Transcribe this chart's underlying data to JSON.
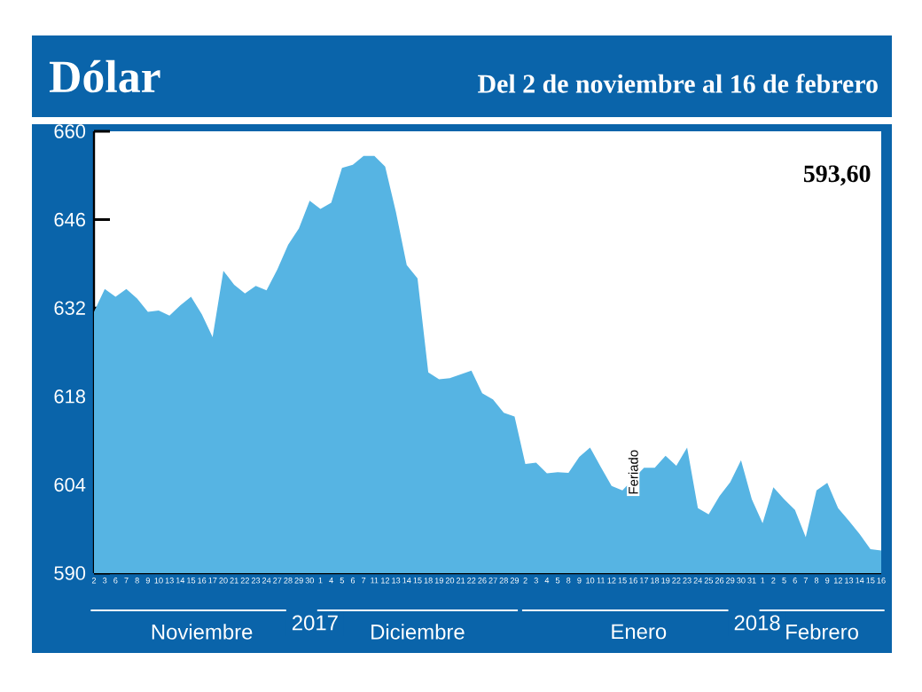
{
  "chart_data": {
    "type": "area",
    "title": "Dólar",
    "subtitle": "Del 2 de noviembre al 16 de febrero",
    "color": "#56b4e3",
    "categories": [
      "2",
      "3",
      "6",
      "7",
      "8",
      "9",
      "10",
      "13",
      "14",
      "15",
      "16",
      "17",
      "20",
      "21",
      "22",
      "23",
      "24",
      "27",
      "28",
      "29",
      "30",
      "1",
      "4",
      "5",
      "6",
      "7",
      "11",
      "12",
      "13",
      "14",
      "15",
      "18",
      "19",
      "20",
      "21",
      "22",
      "26",
      "27",
      "28",
      "29",
      "2",
      "3",
      "4",
      "5",
      "8",
      "9",
      "10",
      "11",
      "12",
      "15",
      "16",
      "17",
      "18",
      "19",
      "22",
      "23",
      "24",
      "25",
      "26",
      "29",
      "30",
      "31",
      "1",
      "2",
      "5",
      "6",
      "7",
      "8",
      "9",
      "12",
      "13",
      "14",
      "15",
      "16"
    ],
    "values": [
      631.4,
      635.0,
      633.8,
      635.0,
      633.5,
      631.4,
      631.6,
      630.8,
      632.4,
      633.8,
      631.0,
      627.4,
      637.9,
      635.7,
      634.3,
      635.5,
      634.8,
      638.1,
      642.0,
      644.6,
      649.0,
      647.7,
      648.7,
      654.2,
      654.7,
      656.1,
      656.1,
      654.4,
      647.2,
      638.8,
      636.7,
      621.8,
      620.7,
      620.9,
      621.5,
      622.1,
      618.5,
      617.5,
      615.4,
      614.8,
      607.3,
      607.5,
      605.8,
      606.0,
      605.9,
      608.4,
      609.9,
      606.8,
      603.8,
      603.1,
      null,
      606.7,
      606.7,
      608.6,
      607.0,
      609.9,
      600.3,
      599.3,
      602.2,
      604.4,
      607.9,
      601.7,
      597.9,
      603.6,
      601.7,
      600.0,
      595.7,
      603.1,
      604.3,
      600.3,
      598.3,
      596.2,
      593.8,
      593.6
    ],
    "ylim": [
      590,
      660
    ],
    "yticks": [
      590,
      604,
      618,
      632,
      646,
      660
    ],
    "annotations": [
      "593,60",
      "Feriado",
      "Noviembre",
      "2017",
      "Diciembre",
      "Enero",
      "2018",
      "Febrero"
    ]
  }
}
